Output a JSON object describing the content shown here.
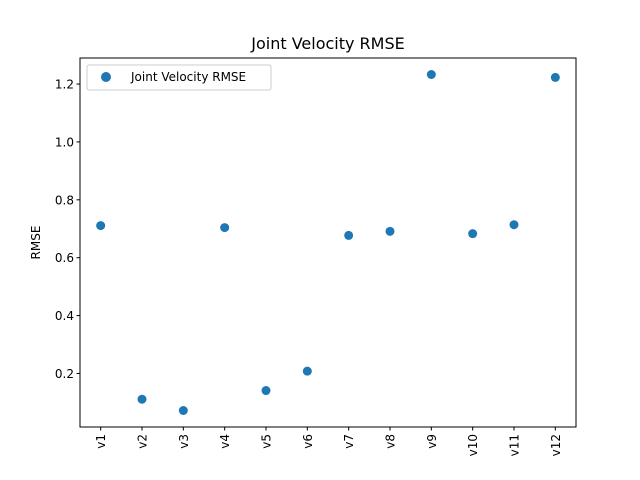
{
  "chart_data": {
    "type": "scatter",
    "title": "Joint Velocity RMSE",
    "xlabel": "",
    "ylabel": "RMSE",
    "categories": [
      "v1",
      "v2",
      "v3",
      "v4",
      "v5",
      "v6",
      "v7",
      "v8",
      "v9",
      "v10",
      "v11",
      "v12"
    ],
    "series": [
      {
        "name": "Joint Velocity RMSE",
        "color": "#1f77b4",
        "values": [
          0.711,
          0.111,
          0.072,
          0.704,
          0.141,
          0.208,
          0.677,
          0.691,
          1.233,
          0.683,
          0.714,
          1.223
        ]
      }
    ],
    "ylim": [
      0.015,
      1.29
    ],
    "yticks": [
      0.2,
      0.4,
      0.6,
      0.8,
      1.0,
      1.2
    ],
    "grid": false,
    "legend_position": "top-left"
  }
}
